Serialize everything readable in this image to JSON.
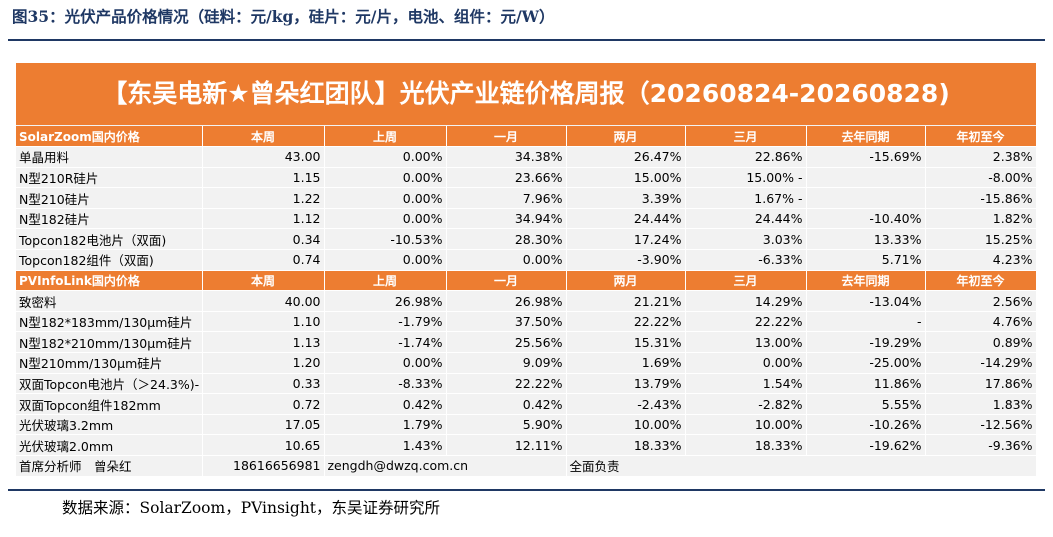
{
  "figure_title": "图35：光伏产品价格情况（硅料：元/kg，硅片：元/片，电池、组件：元/W）",
  "banner": "【东吴电新★曾朵红团队】光伏产业链价格周报（20260824-20260828)",
  "columns": [
    "本周",
    "上周",
    "一月",
    "两月",
    "三月",
    "去年同期",
    "年初至今"
  ],
  "sections": [
    {
      "source": "SolarZoom国内价格",
      "rows": [
        {
          "name": "单晶用料",
          "values": [
            "43.00",
            "0.00%",
            "34.38%",
            "26.47%",
            "22.86%",
            "-15.69%",
            "2.38%"
          ]
        },
        {
          "name": "N型210R硅片",
          "values": [
            "1.15",
            "0.00%",
            "23.66%",
            "15.00%",
            "15.00% -",
            "",
            "-8.00%"
          ]
        },
        {
          "name": "N型210硅片",
          "values": [
            "1.22",
            "0.00%",
            "7.96%",
            "3.39%",
            "1.67% -",
            "",
            "-15.86%"
          ]
        },
        {
          "name": "N型182硅片",
          "values": [
            "1.12",
            "0.00%",
            "34.94%",
            "24.44%",
            "24.44%",
            "-10.40%",
            "1.82%"
          ]
        },
        {
          "name": "Topcon182电池片（双面)",
          "values": [
            "0.34",
            "-10.53%",
            "28.30%",
            "17.24%",
            "3.03%",
            "13.33%",
            "15.25%"
          ]
        },
        {
          "name": "Topcon182组件（双面)",
          "values": [
            "0.74",
            "0.00%",
            "0.00%",
            "-3.90%",
            "-6.33%",
            "5.71%",
            "4.23%"
          ]
        }
      ]
    },
    {
      "source": "PVInfoLink国内价格",
      "rows": [
        {
          "name": "致密料",
          "values": [
            "40.00",
            "26.98%",
            "26.98%",
            "21.21%",
            "14.29%",
            "-13.04%",
            "2.56%"
          ]
        },
        {
          "name": "N型182*183mm/130μm硅片",
          "values": [
            "1.10",
            "-1.79%",
            "37.50%",
            "22.22%",
            "22.22%",
            "-",
            "4.76%"
          ]
        },
        {
          "name": "N型182*210mm/130μm硅片",
          "values": [
            "1.13",
            "-1.74%",
            "25.56%",
            "15.31%",
            "13.00%",
            "-19.29%",
            "0.89%"
          ]
        },
        {
          "name": "N型210mm/130μm硅片",
          "values": [
            "1.20",
            "0.00%",
            "9.09%",
            "1.69%",
            "0.00%",
            "-25.00%",
            "-14.29%"
          ]
        },
        {
          "name": "双面Topcon电池片（＞24.3%)-",
          "values": [
            "0.33",
            "-8.33%",
            "22.22%",
            "13.79%",
            "1.54%",
            "11.86%",
            "17.86%"
          ]
        },
        {
          "name": "双面Topcon组件182mm",
          "values": [
            "0.72",
            "0.42%",
            "0.42%",
            "-2.43%",
            "-2.82%",
            "5.55%",
            "1.83%"
          ]
        },
        {
          "name": "光伏玻璃3.2mm",
          "values": [
            "17.05",
            "1.79%",
            "5.90%",
            "10.00%",
            "10.00%",
            "-10.26%",
            "-12.56%"
          ]
        },
        {
          "name": "光伏玻璃2.0mm",
          "values": [
            "10.65",
            "1.43%",
            "12.11%",
            "18.33%",
            "18.33%",
            "-19.62%",
            "-9.36%"
          ]
        }
      ]
    }
  ],
  "footer": {
    "analyst": "首席分析师　曾朵红",
    "phone": "18616656981",
    "email": "zengdh@dwzq.com.cn",
    "role": "全面负责"
  },
  "source_note": "数据来源：SolarZoom，PVinsight，东吴证券研究所",
  "colors": {
    "accent": "#ed7d31",
    "row_bg": "#f2f2f2",
    "title": "#1f3864"
  }
}
